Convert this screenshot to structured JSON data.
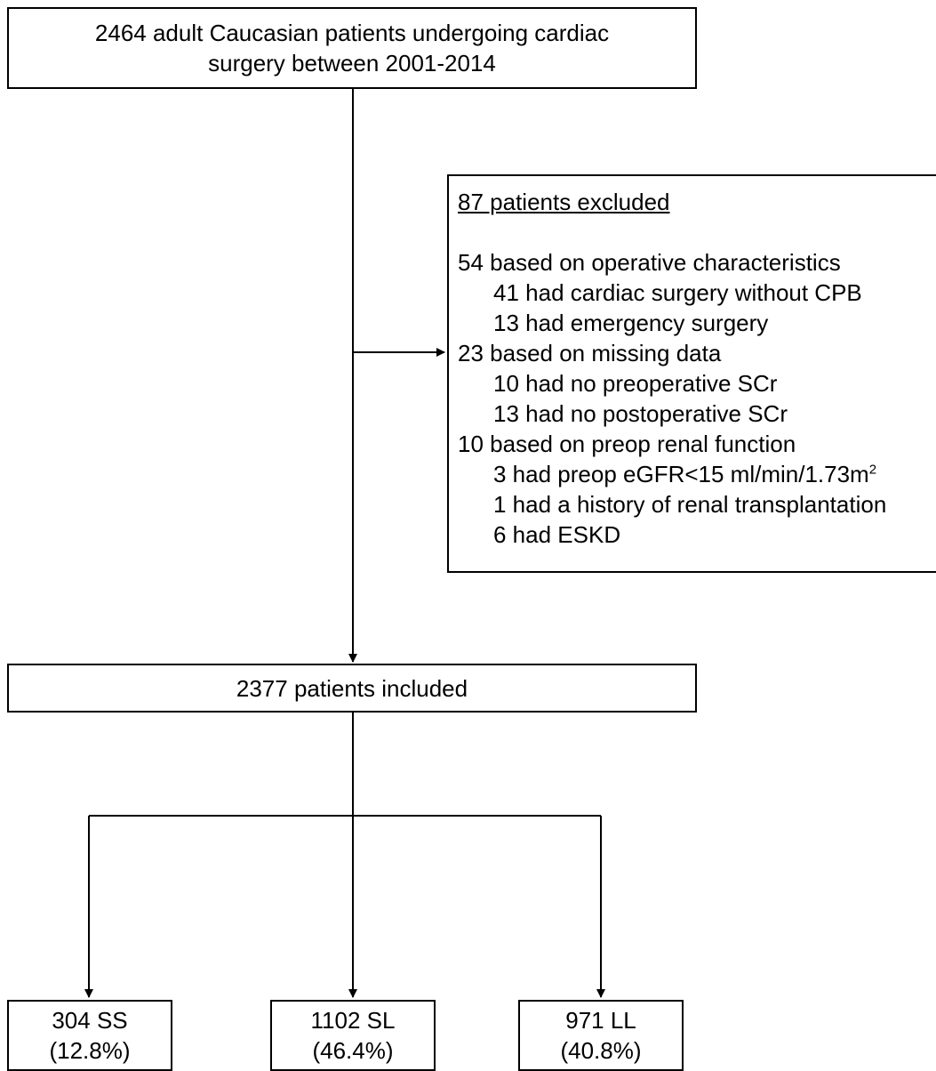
{
  "total": {
    "line1": "2464 adult Caucasian patients undergoing cardiac",
    "line2": "surgery between 2001-2014"
  },
  "excluded": {
    "title": "87 patients excluded",
    "operative": "54 based on operative characteristics",
    "no_cpb": "41 had cardiac surgery without CPB",
    "emergency": "13 had emergency surgery",
    "missing": "23 based on missing data",
    "no_preop_scr": "10 had no preoperative SCr",
    "no_postop_scr": "13 had no postoperative SCr",
    "renal": "10 based on preop renal function",
    "egfr": "3 had preop eGFR<15 ml/min/1.73m",
    "egfr_sup": "2",
    "transplant": "1 had a history of renal transplantation",
    "eskd": "6 had ESKD"
  },
  "included": {
    "label": "2377 patients included"
  },
  "groups": [
    {
      "label": "304 SS",
      "percent": "(12.8%)"
    },
    {
      "label": "1102 SL",
      "percent": "(46.4%)"
    },
    {
      "label": "971 LL",
      "percent": "(40.8%)"
    }
  ]
}
